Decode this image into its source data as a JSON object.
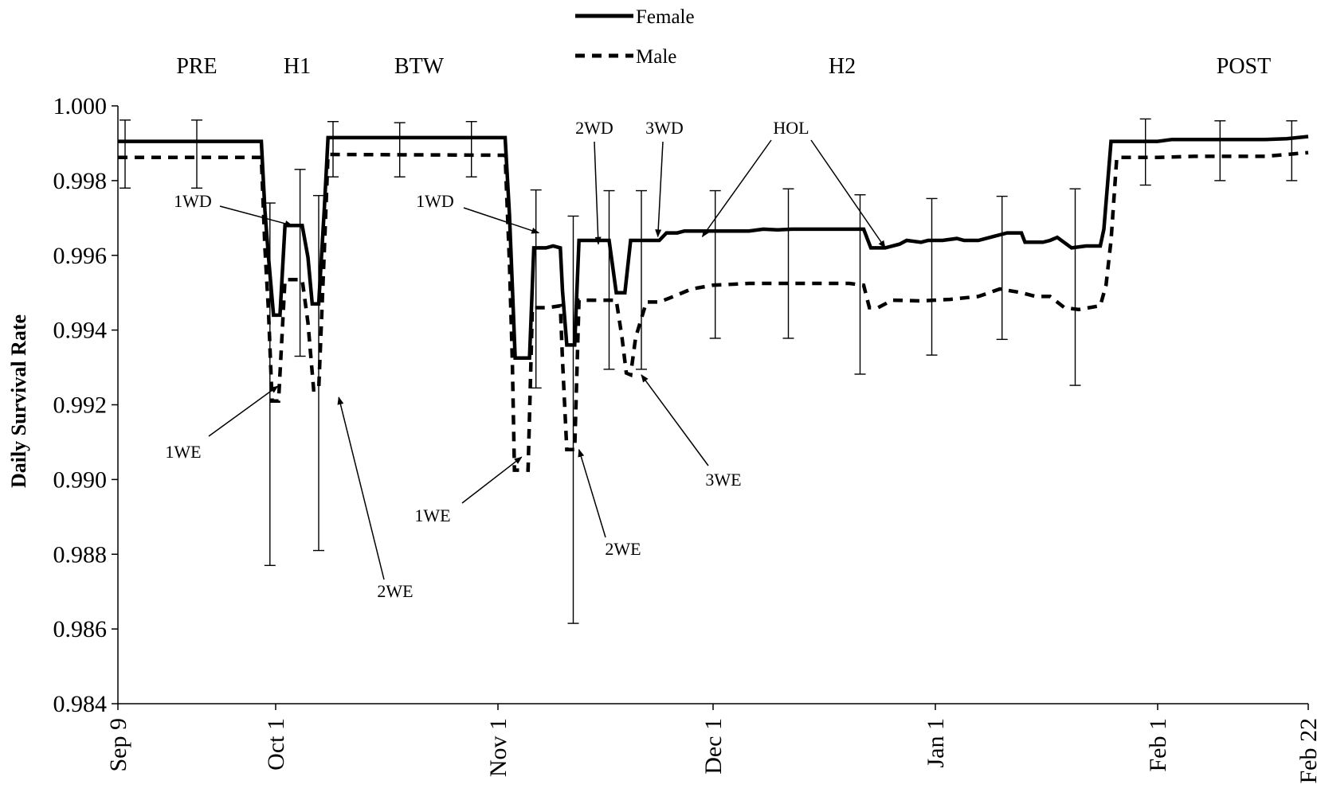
{
  "chart_data": {
    "type": "line",
    "ylabel": "Daily Survival Rate",
    "xlabel": "",
    "ylim": [
      0.984,
      1.0
    ],
    "y_ticks": [
      "0.984",
      "0.986",
      "0.988",
      "0.990",
      "0.992",
      "0.994",
      "0.996",
      "0.998",
      "1.000"
    ],
    "x_ticks": [
      {
        "label": "Sep 9",
        "day": 0
      },
      {
        "label": "Oct 1",
        "day": 22
      },
      {
        "label": "Nov 1",
        "day": 53
      },
      {
        "label": "Dec 1",
        "day": 83
      },
      {
        "label": "Jan 1",
        "day": 114
      },
      {
        "label": "Feb 1",
        "day": 145
      },
      {
        "label": "Feb 22",
        "day": 166
      }
    ],
    "legend_position": "top-center",
    "phases": [
      {
        "label": "PRE",
        "day": 11
      },
      {
        "label": "H1",
        "day": 25
      },
      {
        "label": "BTW",
        "day": 42
      },
      {
        "label": "H2",
        "day": 101
      },
      {
        "label": "POST",
        "day": 157
      }
    ],
    "annotations": [
      {
        "label": "1WD",
        "day": 24.3,
        "value": 0.9968
      },
      {
        "label": "1WE",
        "day": 22.3,
        "value": 0.9925
      },
      {
        "label": "2WE",
        "day": 30.8,
        "value": 0.9922
      },
      {
        "label": "1WD",
        "day": 58.7,
        "value": 0.9966
      },
      {
        "label": "1WE",
        "day": 56.3,
        "value": 0.9906
      },
      {
        "label": "2WD",
        "day": 67,
        "value": 0.9963
      },
      {
        "label": "2WE",
        "day": 64.3,
        "value": 0.9908
      },
      {
        "label": "3WD",
        "day": 75.3,
        "value": 0.9965
      },
      {
        "label": "3WE",
        "day": 73,
        "value": 0.9928
      },
      {
        "label": "HOL",
        "day": 81.5,
        "value": 0.9965
      },
      {
        "label": "HOL",
        "day": 107,
        "value": 0.9962
      }
    ],
    "series": [
      {
        "name": "Female",
        "style": "solid",
        "points": [
          [
            0,
            0.99905
          ],
          [
            20,
            0.99905
          ],
          [
            20.5,
            0.9972
          ],
          [
            21,
            0.99595
          ],
          [
            21.7,
            0.9944
          ],
          [
            22.6,
            0.9944
          ],
          [
            23.3,
            0.9968
          ],
          [
            25.7,
            0.9968
          ],
          [
            26.5,
            0.99595
          ],
          [
            27.1,
            0.9947
          ],
          [
            28,
            0.9947
          ],
          [
            28.8,
            0.9973
          ],
          [
            29.3,
            0.99915
          ],
          [
            54,
            0.99915
          ],
          [
            54.6,
            0.9971
          ],
          [
            55,
            0.9952
          ],
          [
            55.4,
            0.99325
          ],
          [
            57.4,
            0.99325
          ],
          [
            58,
            0.9962
          ],
          [
            59.7,
            0.9962
          ],
          [
            60.7,
            0.99625
          ],
          [
            61.7,
            0.9962
          ],
          [
            62,
            0.99505
          ],
          [
            62.6,
            0.9936
          ],
          [
            63.7,
            0.9936
          ],
          [
            64.3,
            0.9964
          ],
          [
            67.5,
            0.9964
          ],
          [
            68.5,
            0.9964
          ],
          [
            69.5,
            0.995
          ],
          [
            70.7,
            0.995
          ],
          [
            71.5,
            0.9964
          ],
          [
            73.7,
            0.9964
          ],
          [
            75.5,
            0.9964
          ],
          [
            76.5,
            0.9966
          ],
          [
            78,
            0.9966
          ],
          [
            79,
            0.99665
          ],
          [
            88,
            0.99665
          ],
          [
            90,
            0.9967
          ],
          [
            92,
            0.99668
          ],
          [
            94,
            0.9967
          ],
          [
            98,
            0.9967
          ],
          [
            102,
            0.9967
          ],
          [
            104,
            0.9967
          ],
          [
            105,
            0.9962
          ],
          [
            107,
            0.9962
          ],
          [
            109,
            0.9963
          ],
          [
            110,
            0.9964
          ],
          [
            112,
            0.99635
          ],
          [
            113,
            0.9964
          ],
          [
            115,
            0.9964
          ],
          [
            117,
            0.99645
          ],
          [
            118,
            0.9964
          ],
          [
            120,
            0.9964
          ],
          [
            122,
            0.9965
          ],
          [
            124,
            0.9966
          ],
          [
            126,
            0.9966
          ],
          [
            126.5,
            0.99635
          ],
          [
            129,
            0.99635
          ],
          [
            130,
            0.9964
          ],
          [
            131,
            0.99648
          ],
          [
            133,
            0.9962
          ],
          [
            135,
            0.99625
          ],
          [
            137,
            0.99625
          ],
          [
            137.5,
            0.9967
          ],
          [
            138.5,
            0.99905
          ],
          [
            145,
            0.99905
          ],
          [
            147,
            0.9991
          ],
          [
            160,
            0.9991
          ],
          [
            163,
            0.99912
          ],
          [
            166,
            0.99918
          ]
        ]
      },
      {
        "name": "Male",
        "style": "dashed",
        "points": [
          [
            0,
            0.99862
          ],
          [
            20,
            0.99862
          ],
          [
            20.5,
            0.9962
          ],
          [
            21,
            0.9945
          ],
          [
            21.5,
            0.9921
          ],
          [
            22.4,
            0.9921
          ],
          [
            23.3,
            0.99535
          ],
          [
            25.7,
            0.99535
          ],
          [
            26.5,
            0.9942
          ],
          [
            27.3,
            0.9924
          ],
          [
            28,
            0.9924
          ],
          [
            28.8,
            0.9962
          ],
          [
            29.3,
            0.9987
          ],
          [
            54,
            0.99868
          ],
          [
            54.6,
            0.9958
          ],
          [
            55,
            0.9932
          ],
          [
            55.3,
            0.99025
          ],
          [
            57.2,
            0.99025
          ],
          [
            57.8,
            0.9946
          ],
          [
            60,
            0.9946
          ],
          [
            61.7,
            0.99465
          ],
          [
            62,
            0.9932
          ],
          [
            62.6,
            0.9908
          ],
          [
            63.7,
            0.9908
          ],
          [
            64.3,
            0.9948
          ],
          [
            67.5,
            0.9948
          ],
          [
            69.5,
            0.9948
          ],
          [
            70.3,
            0.9938
          ],
          [
            70.9,
            0.99285
          ],
          [
            71.5,
            0.9928
          ],
          [
            72.2,
            0.9938
          ],
          [
            73.7,
            0.99475
          ],
          [
            75.5,
            0.99475
          ],
          [
            77.5,
            0.9949
          ],
          [
            80,
            0.9951
          ],
          [
            83,
            0.9952
          ],
          [
            88,
            0.99525
          ],
          [
            93,
            0.99525
          ],
          [
            102,
            0.99525
          ],
          [
            104,
            0.9952
          ],
          [
            104.8,
            0.9946
          ],
          [
            106,
            0.9946
          ],
          [
            108,
            0.9948
          ],
          [
            112,
            0.99478
          ],
          [
            116,
            0.99482
          ],
          [
            120,
            0.9949
          ],
          [
            123,
            0.9951
          ],
          [
            126,
            0.995
          ],
          [
            128,
            0.9949
          ],
          [
            130,
            0.9949
          ],
          [
            132,
            0.9946
          ],
          [
            134,
            0.99455
          ],
          [
            137,
            0.99465
          ],
          [
            137.8,
            0.9952
          ],
          [
            138.5,
            0.9964
          ],
          [
            139.3,
            0.99862
          ],
          [
            145,
            0.99862
          ],
          [
            150,
            0.99865
          ],
          [
            160,
            0.99865
          ],
          [
            166,
            0.99875
          ]
        ]
      }
    ],
    "error_bars": [
      {
        "day": 1,
        "lo": 0.9978,
        "hi": 0.99962
      },
      {
        "day": 11,
        "lo": 0.9978,
        "hi": 0.99962
      },
      {
        "day": 21.2,
        "lo": 0.9877,
        "hi": 0.9974
      },
      {
        "day": 25.4,
        "lo": 0.9933,
        "hi": 0.9983
      },
      {
        "day": 28,
        "lo": 0.9881,
        "hi": 0.9976
      },
      {
        "day": 30,
        "lo": 0.9981,
        "hi": 0.99958
      },
      {
        "day": 39.3,
        "lo": 0.9981,
        "hi": 0.99955
      },
      {
        "day": 49.3,
        "lo": 0.9981,
        "hi": 0.99958
      },
      {
        "day": 58.3,
        "lo": 0.99245,
        "hi": 0.99775
      },
      {
        "day": 63.5,
        "lo": 0.98615,
        "hi": 0.99705
      },
      {
        "day": 68.5,
        "lo": 0.99295,
        "hi": 0.99773
      },
      {
        "day": 73,
        "lo": 0.99295,
        "hi": 0.99773
      },
      {
        "day": 83.3,
        "lo": 0.99378,
        "hi": 0.99773
      },
      {
        "day": 93.5,
        "lo": 0.99378,
        "hi": 0.99778
      },
      {
        "day": 103.5,
        "lo": 0.99282,
        "hi": 0.99762
      },
      {
        "day": 113.5,
        "lo": 0.99333,
        "hi": 0.99752
      },
      {
        "day": 123.3,
        "lo": 0.99375,
        "hi": 0.99758
      },
      {
        "day": 133.5,
        "lo": 0.99252,
        "hi": 0.99778
      },
      {
        "day": 143.3,
        "lo": 0.99788,
        "hi": 0.99965
      },
      {
        "day": 153.7,
        "lo": 0.998,
        "hi": 0.9996
      },
      {
        "day": 163.7,
        "lo": 0.998,
        "hi": 0.9996
      }
    ]
  }
}
